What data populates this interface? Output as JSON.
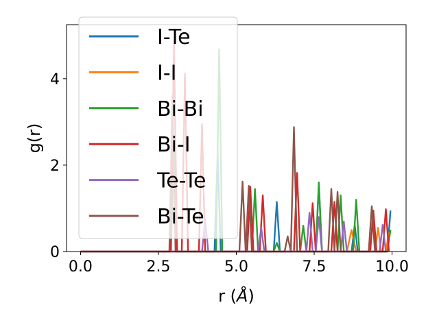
{
  "chart_data": {
    "type": "line",
    "xlabel_prefix": "r (",
    "xlabel_unit": "Å",
    "xlabel_suffix": ")",
    "ylabel": "g(r)",
    "xlim": [
      -0.45,
      10.45
    ],
    "ylim": [
      0,
      5.25
    ],
    "xticks": [
      0.0,
      2.5,
      5.0,
      7.5,
      10.0
    ],
    "xtick_labels": [
      "0.0",
      "2.5",
      "5.0",
      "7.5",
      "10.0"
    ],
    "yticks": [
      0,
      2,
      4
    ],
    "ytick_labels": [
      "0",
      "2",
      "4"
    ],
    "grid": false,
    "legend_position": "upper-left",
    "series": [
      {
        "name": "I-Te",
        "color": "#1f77b4",
        "x": [
          0,
          4.3,
          4.4,
          4.5,
          6.2,
          6.3,
          6.4,
          7.55,
          7.65,
          7.75,
          8.7,
          8.8,
          8.9,
          9.85,
          9.95
        ],
        "y": [
          0,
          0,
          2.3,
          0,
          0,
          1.15,
          0,
          0,
          1.55,
          0,
          0,
          0.62,
          0,
          0,
          0.95
        ]
      },
      {
        "name": "I-I",
        "color": "#ff7f0e",
        "x": [
          0,
          8.55,
          8.7,
          8.85,
          9.45,
          9.55,
          9.65,
          9.8,
          9.9
        ],
        "y": [
          0,
          0,
          0.5,
          0,
          0,
          0.55,
          0,
          0,
          0.45
        ]
      },
      {
        "name": "Bi-Bi",
        "color": "#2ca02c",
        "x": [
          0,
          2.9,
          3.0,
          3.1,
          4.35,
          4.45,
          4.55,
          5.5,
          5.6,
          5.7,
          6.2,
          6.3,
          6.4,
          7.05,
          7.15,
          7.25,
          7.55,
          7.65,
          7.75,
          8.25,
          8.35,
          8.45,
          8.75,
          8.85,
          8.95,
          9.85,
          9.95
        ],
        "y": [
          0,
          0,
          2.5,
          0,
          0,
          4.68,
          0,
          0,
          1.45,
          0,
          0,
          0.2,
          0,
          0,
          0.6,
          0,
          0,
          1.6,
          0,
          0,
          1.3,
          0,
          0,
          1.2,
          0,
          0,
          0.5
        ]
      },
      {
        "name": "Bi-I",
        "color": "#d62728",
        "x": [
          0,
          2.9,
          3.0,
          3.1,
          3.25,
          3.35,
          3.45,
          3.8,
          3.9,
          4.0,
          5.35,
          5.45,
          5.55,
          5.75,
          5.85,
          5.95,
          6.85,
          6.95,
          7.05,
          7.35,
          7.45,
          7.55,
          8.05,
          8.15,
          8.25,
          9.3,
          9.4,
          9.5,
          9.7,
          9.8,
          9.9
        ],
        "y": [
          0,
          0,
          4.85,
          0,
          0,
          4.12,
          0,
          0,
          2.95,
          0,
          0,
          1.5,
          0,
          0,
          1.3,
          0,
          0,
          1.82,
          0,
          0,
          1.12,
          0,
          0,
          1.15,
          0,
          0,
          0.95,
          0,
          0,
          0.98,
          0
        ]
      },
      {
        "name": "Te-Te",
        "color": "#9467bd",
        "x": [
          0,
          3.9,
          4.0,
          4.1,
          5.7,
          5.8,
          5.9,
          7.25,
          7.35,
          7.45,
          7.55,
          7.65,
          7.75,
          8.35,
          8.45,
          8.55,
          9.6,
          9.7,
          9.8
        ],
        "y": [
          0,
          0,
          0.75,
          0,
          0,
          0.55,
          0,
          0,
          0.9,
          0,
          0,
          0.8,
          0,
          0,
          0.7,
          0,
          0,
          0.62,
          0
        ]
      },
      {
        "name": "Bi-Te",
        "color": "#8c564b",
        "x": [
          0,
          2.85,
          2.95,
          3.05,
          5.1,
          5.2,
          5.3,
          5.4,
          5.5,
          6.55,
          6.65,
          6.75,
          6.85,
          6.95,
          7.95,
          8.05,
          8.15,
          8.25,
          8.35,
          9.25,
          9.35,
          9.45,
          9.85
        ],
        "y": [
          0,
          0,
          3.6,
          0,
          0,
          1.62,
          0,
          1.52,
          0,
          0,
          0.35,
          0,
          2.88,
          0,
          0,
          1.45,
          0,
          1.38,
          0,
          0,
          1.05,
          0,
          0
        ]
      }
    ]
  }
}
